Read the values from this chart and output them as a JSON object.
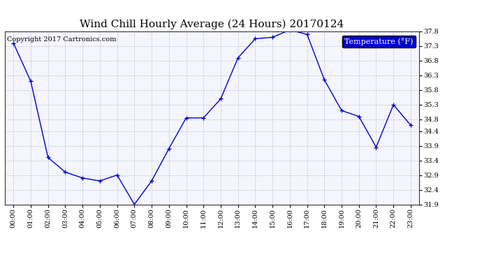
{
  "title": "Wind Chill Hourly Average (24 Hours) 20170124",
  "copyright_text": "Copyright 2017 Cartronics.com",
  "legend_label": "Temperature (°F)",
  "hours": [
    "00:00",
    "01:00",
    "02:00",
    "03:00",
    "04:00",
    "05:00",
    "06:00",
    "07:00",
    "08:00",
    "09:00",
    "10:00",
    "11:00",
    "12:00",
    "13:00",
    "14:00",
    "15:00",
    "16:00",
    "17:00",
    "18:00",
    "19:00",
    "20:00",
    "21:00",
    "22:00",
    "23:00"
  ],
  "values": [
    37.4,
    36.1,
    33.5,
    33.0,
    32.8,
    32.7,
    32.9,
    31.9,
    32.7,
    33.8,
    34.85,
    34.85,
    35.5,
    36.9,
    37.55,
    37.6,
    37.85,
    37.7,
    36.15,
    35.1,
    34.9,
    33.85,
    35.3,
    34.6
  ],
  "ylim_min": 31.9,
  "ylim_max": 37.8,
  "ytick_values": [
    31.9,
    32.4,
    32.9,
    33.4,
    33.9,
    34.4,
    34.8,
    35.3,
    35.8,
    36.3,
    36.8,
    37.3,
    37.8
  ],
  "ytick_labels": [
    "31.9",
    "32.4",
    "32.9",
    "33.4",
    "33.9",
    "34.4",
    "34.8",
    "35.3",
    "35.8",
    "36.3",
    "36.8",
    "37.3",
    "37.8"
  ],
  "line_color": "#0000cc",
  "marker": "+",
  "grid_color": "#aaaaaa",
  "bg_color": "#ffffff",
  "plot_bg_color": "#f5f5ff",
  "title_fontsize": 11,
  "tick_fontsize": 7,
  "copyright_fontsize": 7,
  "legend_bg": "#0000cc",
  "legend_text_color": "#ffffff",
  "legend_fontsize": 8
}
